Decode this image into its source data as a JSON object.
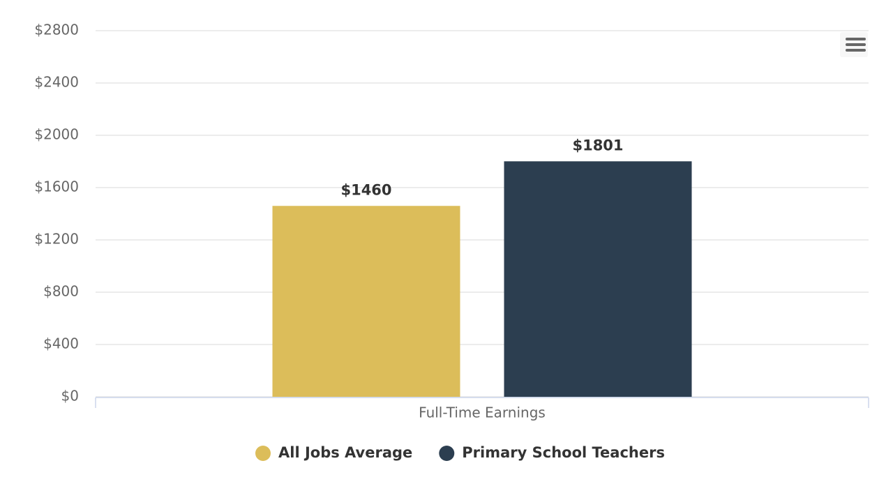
{
  "chart_data": {
    "type": "bar",
    "categories": [
      "Full-Time Earnings"
    ],
    "series": [
      {
        "name": "All Jobs Average",
        "color": "#dcbd5a",
        "values": [
          1460
        ],
        "value_labels": [
          "$1460"
        ]
      },
      {
        "name": "Primary School Teachers",
        "color": "#2c3e50",
        "values": [
          1801
        ],
        "value_labels": [
          "$1801"
        ]
      }
    ],
    "ylim": [
      0,
      2800
    ],
    "yticks": [
      {
        "value": 0,
        "label": "$0"
      },
      {
        "value": 400,
        "label": "$400"
      },
      {
        "value": 800,
        "label": "$800"
      },
      {
        "value": 1200,
        "label": "$1200"
      },
      {
        "value": 1600,
        "label": "$1600"
      },
      {
        "value": 2000,
        "label": "$2000"
      },
      {
        "value": 2400,
        "label": "$2400"
      },
      {
        "value": 2800,
        "label": "$2800"
      }
    ],
    "grid": true
  }
}
